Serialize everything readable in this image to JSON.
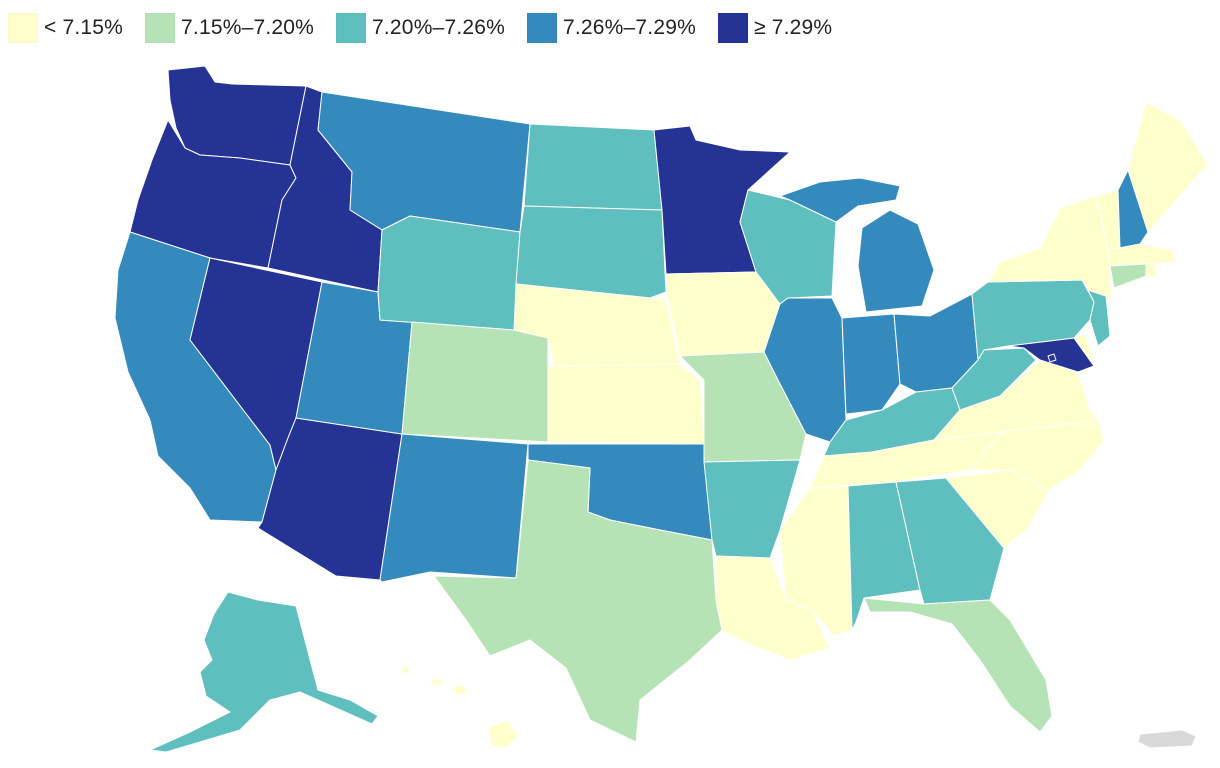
{
  "legend": {
    "items": [
      {
        "label": "< 7.15%",
        "color": "#ffffcc",
        "class": "c1"
      },
      {
        "label": "7.15%–7.20%",
        "color": "#b6e3b6",
        "class": "c2"
      },
      {
        "label": "7.20%–7.26%",
        "color": "#5fbfbf",
        "class": "c3"
      },
      {
        "label": "7.26%–7.29%",
        "color": "#358abd",
        "class": "c4"
      },
      {
        "label": "≥ 7.29%",
        "color": "#253494",
        "class": "c5"
      }
    ]
  },
  "colors": {
    "no_data": "#d9d9d9",
    "border": "#ffffff"
  },
  "states": [
    {
      "name": "Washington",
      "class": "c5"
    },
    {
      "name": "Oregon",
      "class": "c5"
    },
    {
      "name": "California",
      "class": "c4"
    },
    {
      "name": "Idaho",
      "class": "c5"
    },
    {
      "name": "Nevada",
      "class": "c5"
    },
    {
      "name": "Arizona",
      "class": "c5"
    },
    {
      "name": "Utah",
      "class": "c4"
    },
    {
      "name": "Montana",
      "class": "c4"
    },
    {
      "name": "Wyoming",
      "class": "c3"
    },
    {
      "name": "Colorado",
      "class": "c2"
    },
    {
      "name": "New Mexico",
      "class": "c4"
    },
    {
      "name": "North Dakota",
      "class": "c3"
    },
    {
      "name": "South Dakota",
      "class": "c3"
    },
    {
      "name": "Nebraska",
      "class": "c1"
    },
    {
      "name": "Kansas",
      "class": "c1"
    },
    {
      "name": "Oklahoma",
      "class": "c4"
    },
    {
      "name": "Texas",
      "class": "c2"
    },
    {
      "name": "Minnesota",
      "class": "c5"
    },
    {
      "name": "Iowa",
      "class": "c1"
    },
    {
      "name": "Missouri",
      "class": "c2"
    },
    {
      "name": "Arkansas",
      "class": "c3"
    },
    {
      "name": "Louisiana",
      "class": "c1"
    },
    {
      "name": "Wisconsin",
      "class": "c3"
    },
    {
      "name": "Illinois",
      "class": "c4"
    },
    {
      "name": "Michigan",
      "class": "c4"
    },
    {
      "name": "Indiana",
      "class": "c4"
    },
    {
      "name": "Ohio",
      "class": "c4"
    },
    {
      "name": "Kentucky",
      "class": "c3"
    },
    {
      "name": "Tennessee",
      "class": "c1"
    },
    {
      "name": "Mississippi",
      "class": "c1"
    },
    {
      "name": "Alabama",
      "class": "c3"
    },
    {
      "name": "Georgia",
      "class": "c3"
    },
    {
      "name": "Florida",
      "class": "c2"
    },
    {
      "name": "South Carolina",
      "class": "c1"
    },
    {
      "name": "North Carolina",
      "class": "c1"
    },
    {
      "name": "Virginia",
      "class": "c1"
    },
    {
      "name": "West Virginia",
      "class": "c3"
    },
    {
      "name": "Pennsylvania",
      "class": "c3"
    },
    {
      "name": "New York",
      "class": "c1"
    },
    {
      "name": "Vermont",
      "class": "c1"
    },
    {
      "name": "New Hampshire",
      "class": "c4"
    },
    {
      "name": "Maine",
      "class": "c1"
    },
    {
      "name": "Massachusetts",
      "class": "c1"
    },
    {
      "name": "Rhode Island",
      "class": "c1"
    },
    {
      "name": "Connecticut",
      "class": "c2"
    },
    {
      "name": "New Jersey",
      "class": "c3"
    },
    {
      "name": "Delaware",
      "class": "c1"
    },
    {
      "name": "Maryland",
      "class": "c5"
    },
    {
      "name": "District of Columbia",
      "class": "c5"
    },
    {
      "name": "Alaska",
      "class": "c3"
    },
    {
      "name": "Hawaii",
      "class": "c1"
    },
    {
      "name": "Puerto Rico",
      "class": "nodata"
    }
  ]
}
